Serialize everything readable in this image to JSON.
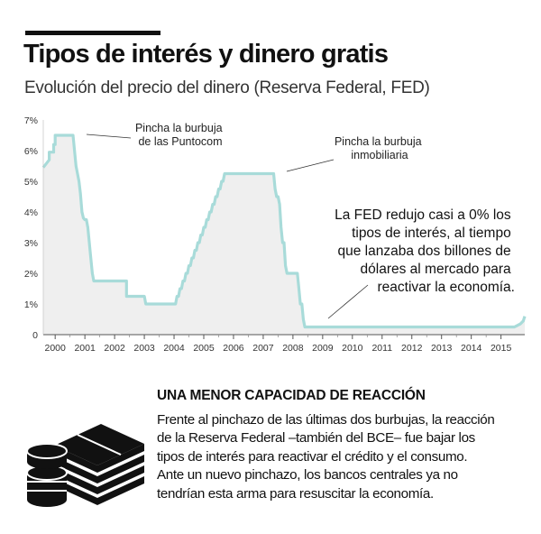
{
  "header": {
    "title": "Tipos de interés y dinero gratis",
    "subtitle": "Evolución del precio del dinero (Reserva Federal, FED)"
  },
  "chart_data": {
    "type": "area",
    "title": "Tipos de interés y dinero gratis",
    "subtitle": "Evolución del precio del dinero (Reserva Federal, FED)",
    "xlabel": "",
    "ylabel": "",
    "xlim": [
      1999.6,
      2015.8
    ],
    "ylim": [
      0,
      7
    ],
    "grid": false,
    "legend": "none",
    "y_ticks": [
      0,
      1,
      2,
      3,
      4,
      5,
      6,
      7
    ],
    "y_tick_labels": [
      "0",
      "1%",
      "2%",
      "3%",
      "4%",
      "5%",
      "6%",
      "7%"
    ],
    "x_ticks": [
      2000,
      2001,
      2002,
      2003,
      2004,
      2005,
      2006,
      2007,
      2008,
      2009,
      2010,
      2011,
      2012,
      2013,
      2014,
      2015
    ],
    "x_tick_labels": [
      "2000",
      "2001",
      "2002",
      "2003",
      "2004",
      "2005",
      "2006",
      "2007",
      "2008",
      "2009",
      "2010",
      "2011",
      "2012",
      "2013",
      "2014",
      "2015"
    ],
    "series": [
      {
        "name": "",
        "color": "#a8dbd9",
        "fill": "#efefef",
        "x": [
          1999.6,
          1999.8,
          1999.8,
          1999.95,
          1999.95,
          2000.0,
          2000.0,
          2000.4,
          2000.4,
          2000.5,
          2000.55,
          2000.6,
          2000.6,
          2000.7,
          2000.7,
          2000.8,
          2000.85,
          2000.9,
          2000.95,
          2001.0,
          2001.05,
          2001.1,
          2001.2,
          2001.25,
          2001.3,
          2001.4,
          2001.5,
          2001.55,
          2002.4,
          2002.4,
          2002.5,
          2002.9,
          2003.0,
          2003.05,
          2003.1,
          2003.45,
          2003.5,
          2003.9,
          2003.95,
          2004.0,
          2004.05,
          2004.1,
          2004.15,
          2004.2,
          2004.25,
          2004.3,
          2004.35,
          2004.4,
          2004.45,
          2004.5,
          2004.55,
          2004.6,
          2004.65,
          2004.7,
          2004.75,
          2004.8,
          2004.85,
          2004.9,
          2004.95,
          2005.0,
          2005.05,
          2005.1,
          2005.15,
          2005.2,
          2005.25,
          2005.3,
          2005.35,
          2005.4,
          2005.45,
          2005.5,
          2005.55,
          2005.6,
          2005.65,
          2005.7,
          2005.75,
          2005.8,
          2005.85,
          2005.9,
          2005.95,
          2006.0,
          2006.05,
          2006.1,
          2006.15,
          2006.2,
          2006.25,
          2006.3,
          2006.35,
          2006.4,
          2006.45,
          2006.5,
          2006.55,
          2007.3,
          2007.35,
          2007.4,
          2007.45,
          2007.5,
          2007.55,
          2007.6,
          2007.65,
          2007.7,
          2007.75,
          2007.8,
          2007.85,
          2007.9,
          2007.95,
          2008.0,
          2008.05,
          2008.1,
          2008.15,
          2008.2,
          2008.25,
          2008.3,
          2008.35,
          2008.4,
          2008.45,
          2008.5,
          2008.55,
          2008.6,
          2008.65,
          2008.7,
          2008.75,
          2008.8,
          2008.85,
          2008.9,
          2008.95,
          2009.0,
          2015.4,
          2015.45,
          2015.55,
          2015.65,
          2015.75,
          2015.8
        ],
        "values": [
          5.45,
          5.7,
          5.95,
          5.95,
          6.2,
          6.2,
          6.5,
          6.5,
          6.5,
          6.5,
          6.5,
          6.5,
          6.5,
          5.5,
          5.5,
          5.0,
          4.6,
          4.0,
          3.8,
          3.75,
          3.75,
          3.5,
          2.5,
          2.0,
          1.75,
          1.75,
          1.75,
          1.75,
          1.75,
          1.25,
          1.25,
          1.25,
          1.25,
          1.0,
          1.0,
          1.0,
          1.0,
          1.0,
          1.0,
          1.0,
          1.0,
          1.25,
          1.25,
          1.5,
          1.5,
          1.75,
          1.75,
          2.0,
          2.0,
          2.25,
          2.25,
          2.5,
          2.5,
          2.75,
          2.75,
          3.0,
          3.0,
          3.25,
          3.25,
          3.5,
          3.5,
          3.75,
          3.75,
          4.0,
          4.0,
          4.25,
          4.25,
          4.5,
          4.5,
          4.75,
          4.75,
          5.0,
          5.0,
          5.25,
          5.25,
          5.25,
          5.25,
          5.25,
          5.25,
          5.25,
          5.25,
          5.25,
          5.25,
          5.25,
          5.25,
          5.25,
          5.25,
          5.25,
          5.25,
          5.25,
          5.25,
          5.25,
          5.25,
          4.75,
          4.5,
          4.5,
          4.25,
          3.5,
          3.0,
          3.0,
          2.25,
          2.0,
          2.0,
          2.0,
          2.0,
          2.0,
          2.0,
          2.0,
          2.0,
          1.5,
          1.0,
          1.0,
          0.5,
          0.25,
          0.25,
          0.25,
          0.25,
          0.25,
          0.25,
          0.25,
          0.25,
          0.25,
          0.25,
          0.25,
          0.25,
          0.25,
          0.25,
          0.25,
          0.3,
          0.35,
          0.45,
          0.6
        ]
      }
    ],
    "annotations": [
      {
        "lines": [
          "Pincha la burbuja",
          "de las Puntocom"
        ]
      },
      {
        "lines": [
          "Pincha la burbuja",
          "inmobiliaria"
        ]
      },
      {
        "lines": [
          "La FED redujo casi a 0% los",
          "tipos de interés, al tiempo",
          "que lanzaba dos billones de",
          "dólares al mercado para",
          "reactivar la economía."
        ]
      }
    ]
  },
  "bottom": {
    "heading": "UNA MENOR CAPACIDAD DE REACCIÓN",
    "body_lines": [
      "Frente al pinchazo de las últimas dos burbujas, la reacción",
      "de la Reserva Federal –también del BCE– fue bajar los",
      "tipos de interés para reactivar el crédito y el consumo.",
      "Ante un nuevo pinchazo, los bancos centrales ya no",
      "tendrían esta arma para resuscitar la economía."
    ],
    "icon": "money-stack-icon"
  }
}
